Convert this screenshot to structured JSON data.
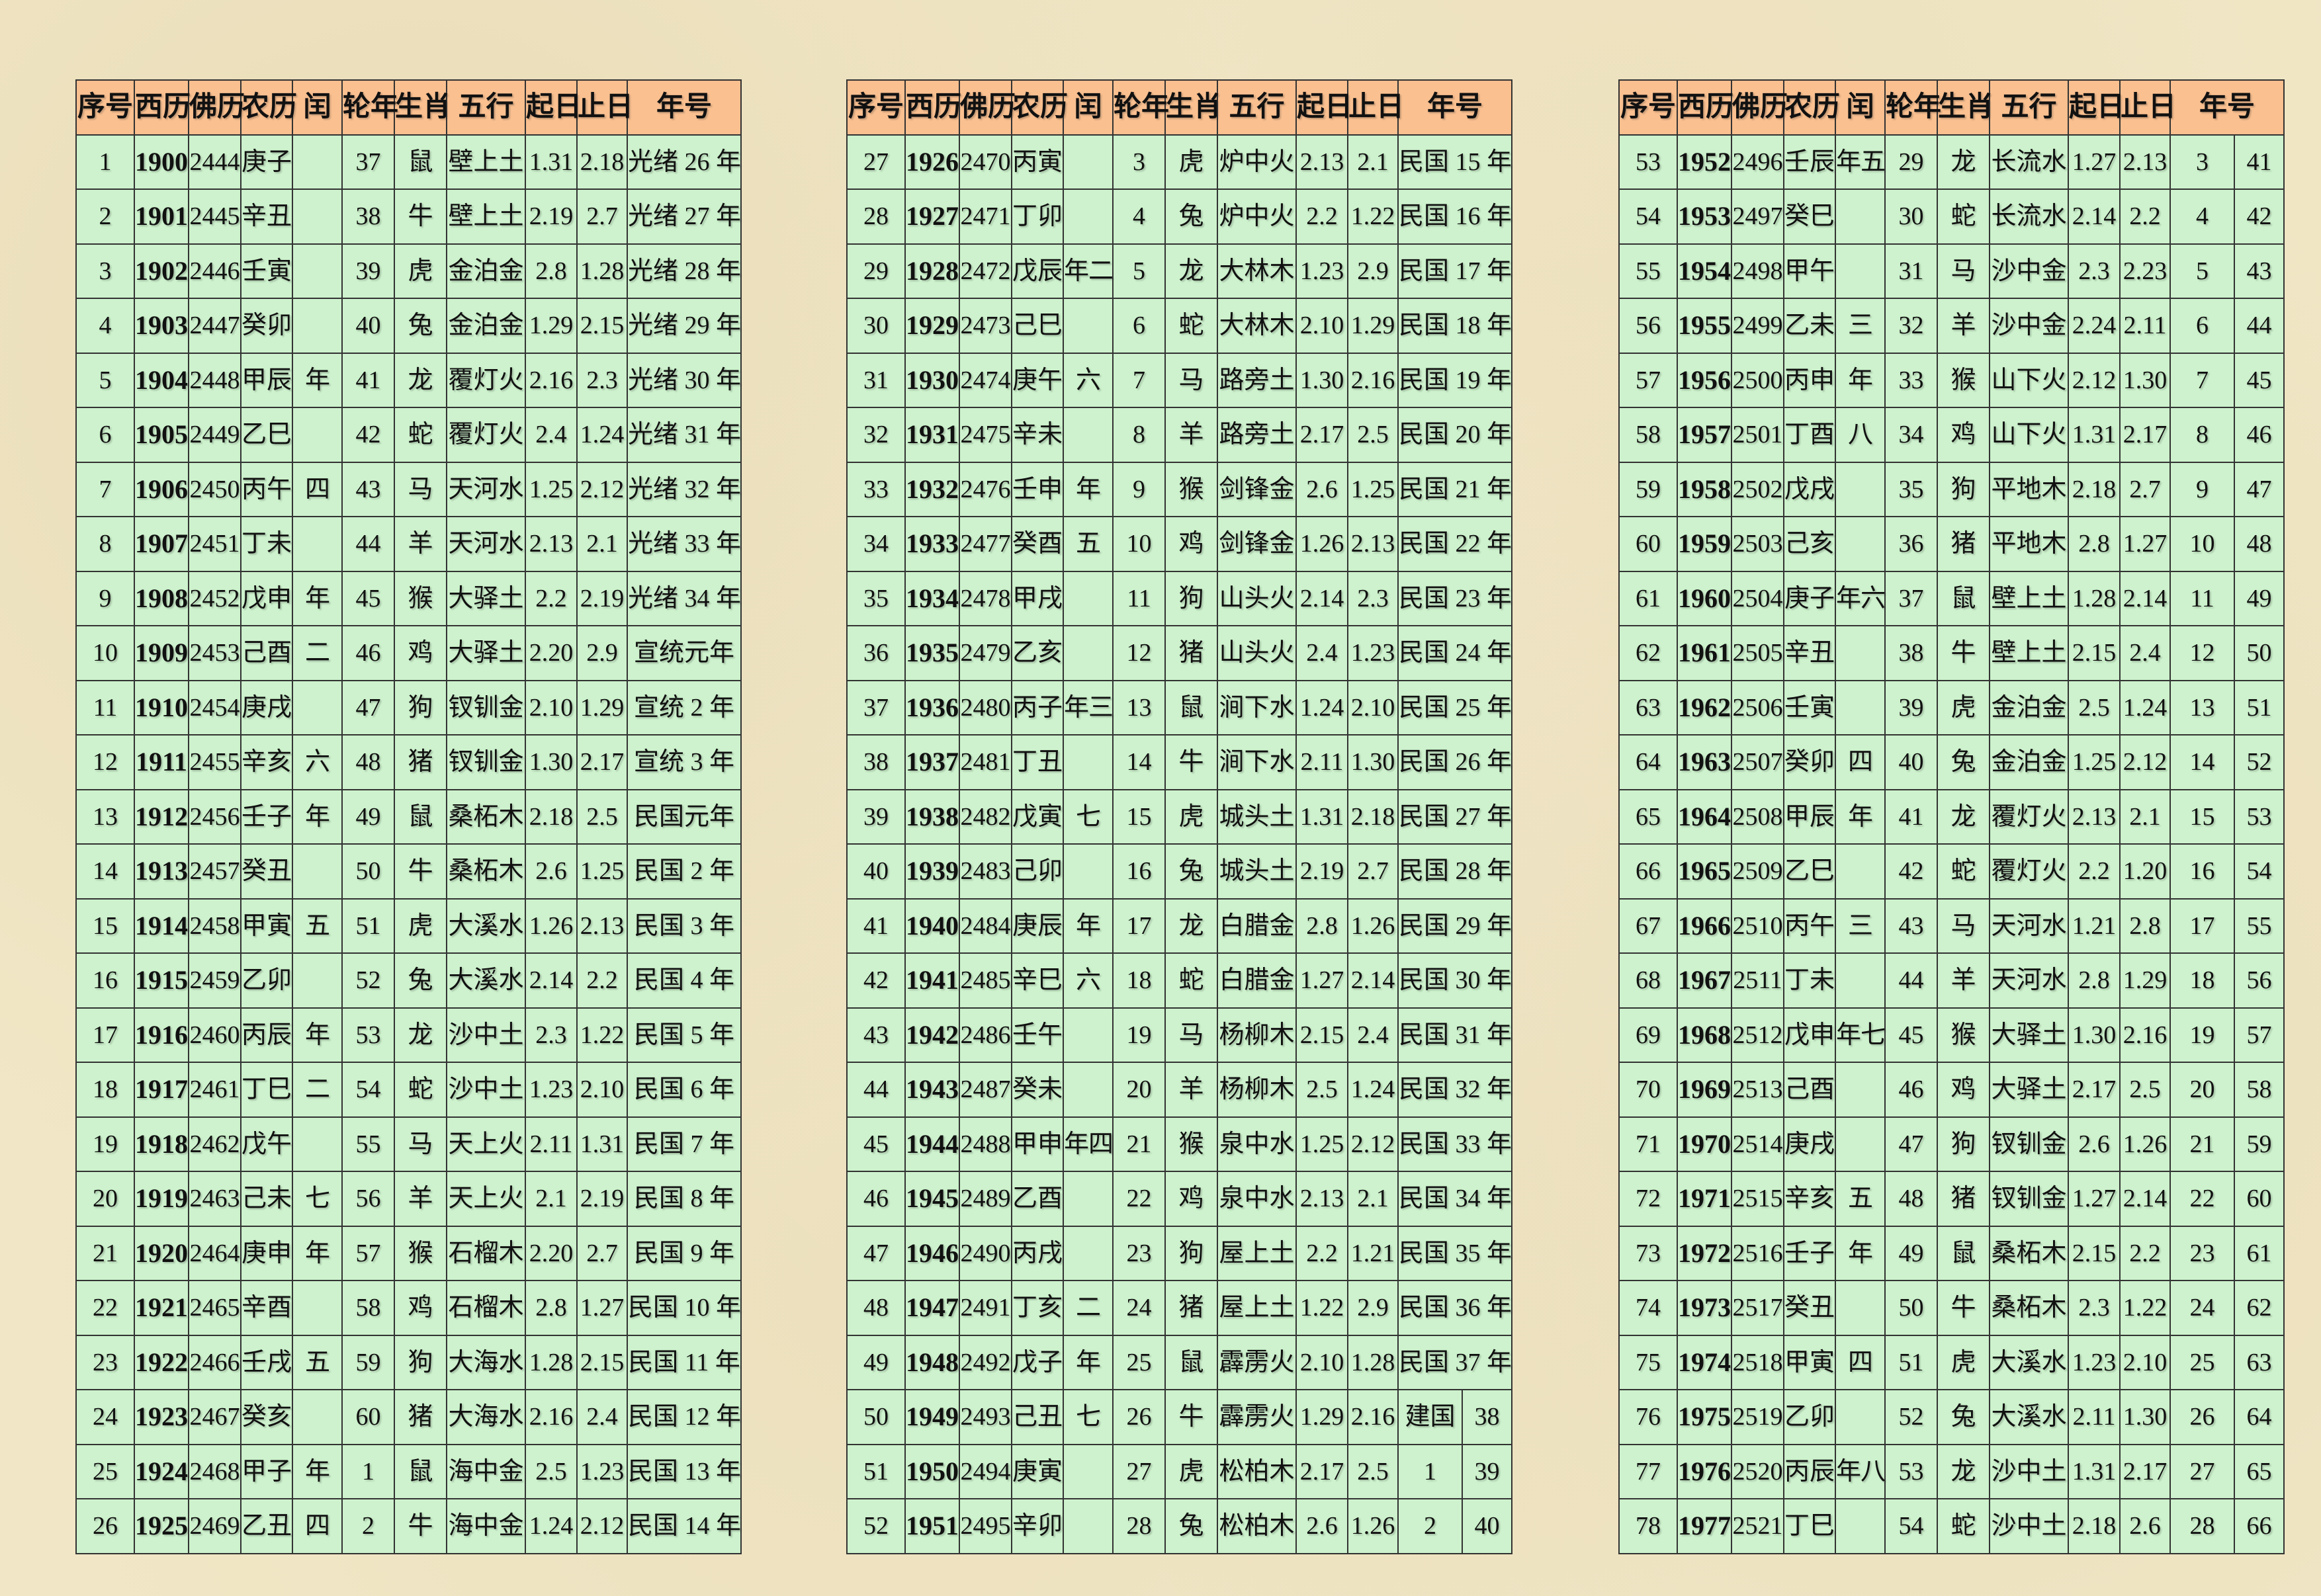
{
  "colors": {
    "header_bg": "#fac090",
    "cell_bg": "#cdf2cd",
    "paper_bg": "#f1e7c6",
    "border": "#333333",
    "ink": "#111111"
  },
  "header": {
    "cols": [
      "序号",
      "西历",
      "佛历",
      "农历",
      "闰",
      "轮年",
      "生肖",
      "五行",
      "起日",
      "止日",
      "年号"
    ]
  },
  "tables": [
    {
      "name": "years-1900-1925",
      "rows": [
        [
          "1",
          "1900",
          "2444",
          "庚子",
          "",
          "37",
          "鼠",
          "壁上土",
          "1.31",
          "2.18",
          "光绪 26 年"
        ],
        [
          "2",
          "1901",
          "2445",
          "辛丑",
          "",
          "38",
          "牛",
          "壁上土",
          "2.19",
          "2.7",
          "光绪 27 年"
        ],
        [
          "3",
          "1902",
          "2446",
          "壬寅",
          "",
          "39",
          "虎",
          "金泊金",
          "2.8",
          "1.28",
          "光绪 28 年"
        ],
        [
          "4",
          "1903",
          "2447",
          "癸卯",
          "",
          "40",
          "兔",
          "金泊金",
          "1.29",
          "2.15",
          "光绪 29 年"
        ],
        [
          "5",
          "1904",
          "2448",
          "甲辰",
          "年",
          "41",
          "龙",
          "覆灯火",
          "2.16",
          "2.3",
          "光绪 30 年"
        ],
        [
          "6",
          "1905",
          "2449",
          "乙巳",
          "",
          "42",
          "蛇",
          "覆灯火",
          "2.4",
          "1.24",
          "光绪 31 年"
        ],
        [
          "7",
          "1906",
          "2450",
          "丙午",
          "四",
          "43",
          "马",
          "天河水",
          "1.25",
          "2.12",
          "光绪 32 年"
        ],
        [
          "8",
          "1907",
          "2451",
          "丁未",
          "",
          "44",
          "羊",
          "天河水",
          "2.13",
          "2.1",
          "光绪 33 年"
        ],
        [
          "9",
          "1908",
          "2452",
          "戊申",
          "年",
          "45",
          "猴",
          "大驿土",
          "2.2",
          "2.19",
          "光绪 34 年"
        ],
        [
          "10",
          "1909",
          "2453",
          "己酉",
          "二",
          "46",
          "鸡",
          "大驿土",
          "2.20",
          "2.9",
          "宣统元年"
        ],
        [
          "11",
          "1910",
          "2454",
          "庚戌",
          "",
          "47",
          "狗",
          "钗钏金",
          "2.10",
          "1.29",
          "宣统 2 年"
        ],
        [
          "12",
          "1911",
          "2455",
          "辛亥",
          "六",
          "48",
          "猪",
          "钗钏金",
          "1.30",
          "2.17",
          "宣统 3 年"
        ],
        [
          "13",
          "1912",
          "2456",
          "壬子",
          "年",
          "49",
          "鼠",
          "桑柘木",
          "2.18",
          "2.5",
          "民国元年"
        ],
        [
          "14",
          "1913",
          "2457",
          "癸丑",
          "",
          "50",
          "牛",
          "桑柘木",
          "2.6",
          "1.25",
          "民国 2 年"
        ],
        [
          "15",
          "1914",
          "2458",
          "甲寅",
          "五",
          "51",
          "虎",
          "大溪水",
          "1.26",
          "2.13",
          "民国 3 年"
        ],
        [
          "16",
          "1915",
          "2459",
          "乙卯",
          "",
          "52",
          "兔",
          "大溪水",
          "2.14",
          "2.2",
          "民国 4 年"
        ],
        [
          "17",
          "1916",
          "2460",
          "丙辰",
          "年",
          "53",
          "龙",
          "沙中土",
          "2.3",
          "1.22",
          "民国 5 年"
        ],
        [
          "18",
          "1917",
          "2461",
          "丁巳",
          "二",
          "54",
          "蛇",
          "沙中土",
          "1.23",
          "2.10",
          "民国 6 年"
        ],
        [
          "19",
          "1918",
          "2462",
          "戊午",
          "",
          "55",
          "马",
          "天上火",
          "2.11",
          "1.31",
          "民国 7 年"
        ],
        [
          "20",
          "1919",
          "2463",
          "己未",
          "七",
          "56",
          "羊",
          "天上火",
          "2.1",
          "2.19",
          "民国 8 年"
        ],
        [
          "21",
          "1920",
          "2464",
          "庚申",
          "年",
          "57",
          "猴",
          "石榴木",
          "2.20",
          "2.7",
          "民国 9 年"
        ],
        [
          "22",
          "1921",
          "2465",
          "辛酉",
          "",
          "58",
          "鸡",
          "石榴木",
          "2.8",
          "1.27",
          "民国 10 年"
        ],
        [
          "23",
          "1922",
          "2466",
          "壬戌",
          "五",
          "59",
          "狗",
          "大海水",
          "1.28",
          "2.15",
          "民国 11 年"
        ],
        [
          "24",
          "1923",
          "2467",
          "癸亥",
          "",
          "60",
          "猪",
          "大海水",
          "2.16",
          "2.4",
          "民国 12 年"
        ],
        [
          "25",
          "1924",
          "2468",
          "甲子",
          "年",
          "1",
          "鼠",
          "海中金",
          "2.5",
          "1.23",
          "民国 13 年"
        ],
        [
          "26",
          "1925",
          "2469",
          "乙丑",
          "四",
          "2",
          "牛",
          "海中金",
          "1.24",
          "2.12",
          "民国 14 年"
        ]
      ]
    },
    {
      "name": "years-1926-1951",
      "rows": [
        [
          "27",
          "1926",
          "2470",
          "丙寅",
          "",
          "3",
          "虎",
          "炉中火",
          "2.13",
          "2.1",
          "民国 15 年"
        ],
        [
          "28",
          "1927",
          "2471",
          "丁卯",
          "",
          "4",
          "兔",
          "炉中火",
          "2.2",
          "1.22",
          "民国 16 年"
        ],
        [
          "29",
          "1928",
          "2472",
          "戊辰",
          "年二",
          "5",
          "龙",
          "大林木",
          "1.23",
          "2.9",
          "民国 17 年"
        ],
        [
          "30",
          "1929",
          "2473",
          "己巳",
          "",
          "6",
          "蛇",
          "大林木",
          "2.10",
          "1.29",
          "民国 18 年"
        ],
        [
          "31",
          "1930",
          "2474",
          "庚午",
          "六",
          "7",
          "马",
          "路旁土",
          "1.30",
          "2.16",
          "民国 19 年"
        ],
        [
          "32",
          "1931",
          "2475",
          "辛未",
          "",
          "8",
          "羊",
          "路旁土",
          "2.17",
          "2.5",
          "民国 20 年"
        ],
        [
          "33",
          "1932",
          "2476",
          "壬申",
          "年",
          "9",
          "猴",
          "剑锋金",
          "2.6",
          "1.25",
          "民国 21 年"
        ],
        [
          "34",
          "1933",
          "2477",
          "癸酉",
          "五",
          "10",
          "鸡",
          "剑锋金",
          "1.26",
          "2.13",
          "民国 22 年"
        ],
        [
          "35",
          "1934",
          "2478",
          "甲戌",
          "",
          "11",
          "狗",
          "山头火",
          "2.14",
          "2.3",
          "民国 23 年"
        ],
        [
          "36",
          "1935",
          "2479",
          "乙亥",
          "",
          "12",
          "猪",
          "山头火",
          "2.4",
          "1.23",
          "民国 24 年"
        ],
        [
          "37",
          "1936",
          "2480",
          "丙子",
          "年三",
          "13",
          "鼠",
          "涧下水",
          "1.24",
          "2.10",
          "民国 25 年"
        ],
        [
          "38",
          "1937",
          "2481",
          "丁丑",
          "",
          "14",
          "牛",
          "涧下水",
          "2.11",
          "1.30",
          "民国 26 年"
        ],
        [
          "39",
          "1938",
          "2482",
          "戊寅",
          "七",
          "15",
          "虎",
          "城头土",
          "1.31",
          "2.18",
          "民国 27 年"
        ],
        [
          "40",
          "1939",
          "2483",
          "己卯",
          "",
          "16",
          "兔",
          "城头土",
          "2.19",
          "2.7",
          "民国 28 年"
        ],
        [
          "41",
          "1940",
          "2484",
          "庚辰",
          "年",
          "17",
          "龙",
          "白腊金",
          "2.8",
          "1.26",
          "民国 29 年"
        ],
        [
          "42",
          "1941",
          "2485",
          "辛巳",
          "六",
          "18",
          "蛇",
          "白腊金",
          "1.27",
          "2.14",
          "民国 30 年"
        ],
        [
          "43",
          "1942",
          "2486",
          "壬午",
          "",
          "19",
          "马",
          "杨柳木",
          "2.15",
          "2.4",
          "民国 31 年"
        ],
        [
          "44",
          "1943",
          "2487",
          "癸未",
          "",
          "20",
          "羊",
          "杨柳木",
          "2.5",
          "1.24",
          "民国 32 年"
        ],
        [
          "45",
          "1944",
          "2488",
          "甲申",
          "年四",
          "21",
          "猴",
          "泉中水",
          "1.25",
          "2.12",
          "民国 33 年"
        ],
        [
          "46",
          "1945",
          "2489",
          "乙酉",
          "",
          "22",
          "鸡",
          "泉中水",
          "2.13",
          "2.1",
          "民国 34 年"
        ],
        [
          "47",
          "1946",
          "2490",
          "丙戌",
          "",
          "23",
          "狗",
          "屋上土",
          "2.2",
          "1.21",
          "民国 35 年"
        ],
        [
          "48",
          "1947",
          "2491",
          "丁亥",
          "二",
          "24",
          "猪",
          "屋上土",
          "1.22",
          "2.9",
          "民国 36 年"
        ],
        [
          "49",
          "1948",
          "2492",
          "戊子",
          "年",
          "25",
          "鼠",
          "霹雳火",
          "2.10",
          "1.28",
          "民国 37 年"
        ],
        [
          "50",
          "1949",
          "2493",
          "己丑",
          "七",
          "26",
          "牛",
          "霹雳火",
          "1.29",
          "2.16",
          [
            "建国",
            "38"
          ]
        ],
        [
          "51",
          "1950",
          "2494",
          "庚寅",
          "",
          "27",
          "虎",
          "松柏木",
          "2.17",
          "2.5",
          [
            "1",
            "39"
          ]
        ],
        [
          "52",
          "1951",
          "2495",
          "辛卯",
          "",
          "28",
          "兔",
          "松柏木",
          "2.6",
          "1.26",
          [
            "2",
            "40"
          ]
        ]
      ]
    },
    {
      "name": "years-1952-1977",
      "rows": [
        [
          "53",
          "1952",
          "2496",
          "壬辰",
          "年五",
          "29",
          "龙",
          "长流水",
          "1.27",
          "2.13",
          [
            "3",
            "41"
          ]
        ],
        [
          "54",
          "1953",
          "2497",
          "癸巳",
          "",
          "30",
          "蛇",
          "长流水",
          "2.14",
          "2.2",
          [
            "4",
            "42"
          ]
        ],
        [
          "55",
          "1954",
          "2498",
          "甲午",
          "",
          "31",
          "马",
          "沙中金",
          "2.3",
          "2.23",
          [
            "5",
            "43"
          ]
        ],
        [
          "56",
          "1955",
          "2499",
          "乙未",
          "三",
          "32",
          "羊",
          "沙中金",
          "2.24",
          "2.11",
          [
            "6",
            "44"
          ]
        ],
        [
          "57",
          "1956",
          "2500",
          "丙申",
          "年",
          "33",
          "猴",
          "山下火",
          "2.12",
          "1.30",
          [
            "7",
            "45"
          ]
        ],
        [
          "58",
          "1957",
          "2501",
          "丁酉",
          "八",
          "34",
          "鸡",
          "山下火",
          "1.31",
          "2.17",
          [
            "8",
            "46"
          ]
        ],
        [
          "59",
          "1958",
          "2502",
          "戊戌",
          "",
          "35",
          "狗",
          "平地木",
          "2.18",
          "2.7",
          [
            "9",
            "47"
          ]
        ],
        [
          "60",
          "1959",
          "2503",
          "己亥",
          "",
          "36",
          "猪",
          "平地木",
          "2.8",
          "1.27",
          [
            "10",
            "48"
          ]
        ],
        [
          "61",
          "1960",
          "2504",
          "庚子",
          "年六",
          "37",
          "鼠",
          "壁上土",
          "1.28",
          "2.14",
          [
            "11",
            "49"
          ]
        ],
        [
          "62",
          "1961",
          "2505",
          "辛丑",
          "",
          "38",
          "牛",
          "壁上土",
          "2.15",
          "2.4",
          [
            "12",
            "50"
          ]
        ],
        [
          "63",
          "1962",
          "2506",
          "壬寅",
          "",
          "39",
          "虎",
          "金泊金",
          "2.5",
          "1.24",
          [
            "13",
            "51"
          ]
        ],
        [
          "64",
          "1963",
          "2507",
          "癸卯",
          "四",
          "40",
          "兔",
          "金泊金",
          "1.25",
          "2.12",
          [
            "14",
            "52"
          ]
        ],
        [
          "65",
          "1964",
          "2508",
          "甲辰",
          "年",
          "41",
          "龙",
          "覆灯火",
          "2.13",
          "2.1",
          [
            "15",
            "53"
          ]
        ],
        [
          "66",
          "1965",
          "2509",
          "乙巳",
          "",
          "42",
          "蛇",
          "覆灯火",
          "2.2",
          "1.20",
          [
            "16",
            "54"
          ]
        ],
        [
          "67",
          "1966",
          "2510",
          "丙午",
          "三",
          "43",
          "马",
          "天河水",
          "1.21",
          "2.8",
          [
            "17",
            "55"
          ]
        ],
        [
          "68",
          "1967",
          "2511",
          "丁未",
          "",
          "44",
          "羊",
          "天河水",
          "2.8",
          "1.29",
          [
            "18",
            "56"
          ]
        ],
        [
          "69",
          "1968",
          "2512",
          "戊申",
          "年七",
          "45",
          "猴",
          "大驿土",
          "1.30",
          "2.16",
          [
            "19",
            "57"
          ]
        ],
        [
          "70",
          "1969",
          "2513",
          "己酉",
          "",
          "46",
          "鸡",
          "大驿土",
          "2.17",
          "2.5",
          [
            "20",
            "58"
          ]
        ],
        [
          "71",
          "1970",
          "2514",
          "庚戌",
          "",
          "47",
          "狗",
          "钗钏金",
          "2.6",
          "1.26",
          [
            "21",
            "59"
          ]
        ],
        [
          "72",
          "1971",
          "2515",
          "辛亥",
          "五",
          "48",
          "猪",
          "钗钏金",
          "1.27",
          "2.14",
          [
            "22",
            "60"
          ]
        ],
        [
          "73",
          "1972",
          "2516",
          "壬子",
          "年",
          "49",
          "鼠",
          "桑柘木",
          "2.15",
          "2.2",
          [
            "23",
            "61"
          ]
        ],
        [
          "74",
          "1973",
          "2517",
          "癸丑",
          "",
          "50",
          "牛",
          "桑柘木",
          "2.3",
          "1.22",
          [
            "24",
            "62"
          ]
        ],
        [
          "75",
          "1974",
          "2518",
          "甲寅",
          "四",
          "51",
          "虎",
          "大溪水",
          "1.23",
          "2.10",
          [
            "25",
            "63"
          ]
        ],
        [
          "76",
          "1975",
          "2519",
          "乙卯",
          "",
          "52",
          "兔",
          "大溪水",
          "2.11",
          "1.30",
          [
            "26",
            "64"
          ]
        ],
        [
          "77",
          "1976",
          "2520",
          "丙辰",
          "年八",
          "53",
          "龙",
          "沙中土",
          "1.31",
          "2.17",
          [
            "27",
            "65"
          ]
        ],
        [
          "78",
          "1977",
          "2521",
          "丁巳",
          "",
          "54",
          "蛇",
          "沙中土",
          "2.18",
          "2.6",
          [
            "28",
            "66"
          ]
        ]
      ]
    }
  ]
}
